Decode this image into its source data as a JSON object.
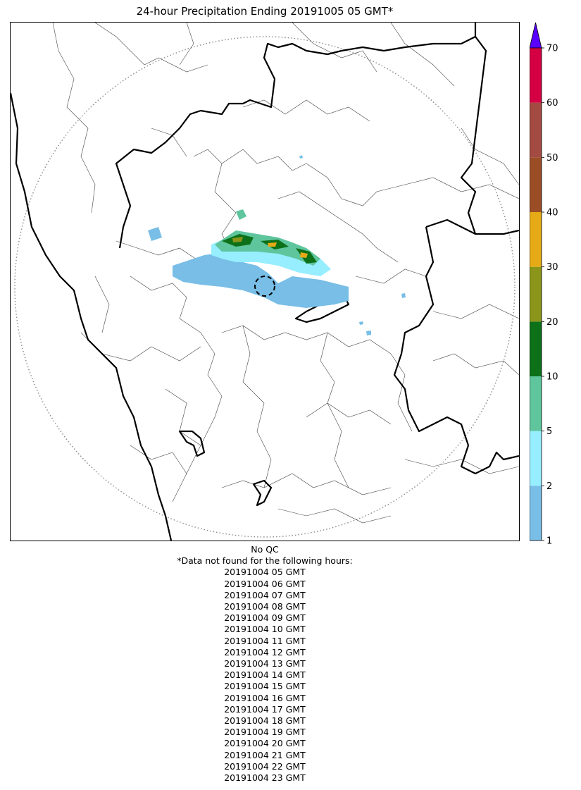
{
  "title": "24-hour Precipitation Ending 20191005 05 GMT*",
  "colorbar": {
    "ticks": [
      "1",
      "2",
      "5",
      "10",
      "20",
      "30",
      "40",
      "50",
      "60",
      "70"
    ],
    "colors": [
      "#78bee6",
      "#96eeff",
      "#5ec59d",
      "#0c7119",
      "#8a9519",
      "#e6aa16",
      "#9b4d26",
      "#a34a42",
      "#d50043"
    ],
    "extend_color": "#5a00ff"
  },
  "notes": {
    "qc": "No QC",
    "missing_header": "*Data not found for the following hours:",
    "missing_hours": [
      "20191004 05 GMT",
      "20191004 06 GMT",
      "20191004 07 GMT",
      "20191004 08 GMT",
      "20191004 09 GMT",
      "20191004 10 GMT",
      "20191004 11 GMT",
      "20191004 12 GMT",
      "20191004 13 GMT",
      "20191004 14 GMT",
      "20191004 15 GMT",
      "20191004 16 GMT",
      "20191004 17 GMT",
      "20191004 18 GMT",
      "20191004 19 GMT",
      "20191004 20 GMT",
      "20191004 21 GMT",
      "20191004 22 GMT",
      "20191004 23 GMT"
    ]
  }
}
